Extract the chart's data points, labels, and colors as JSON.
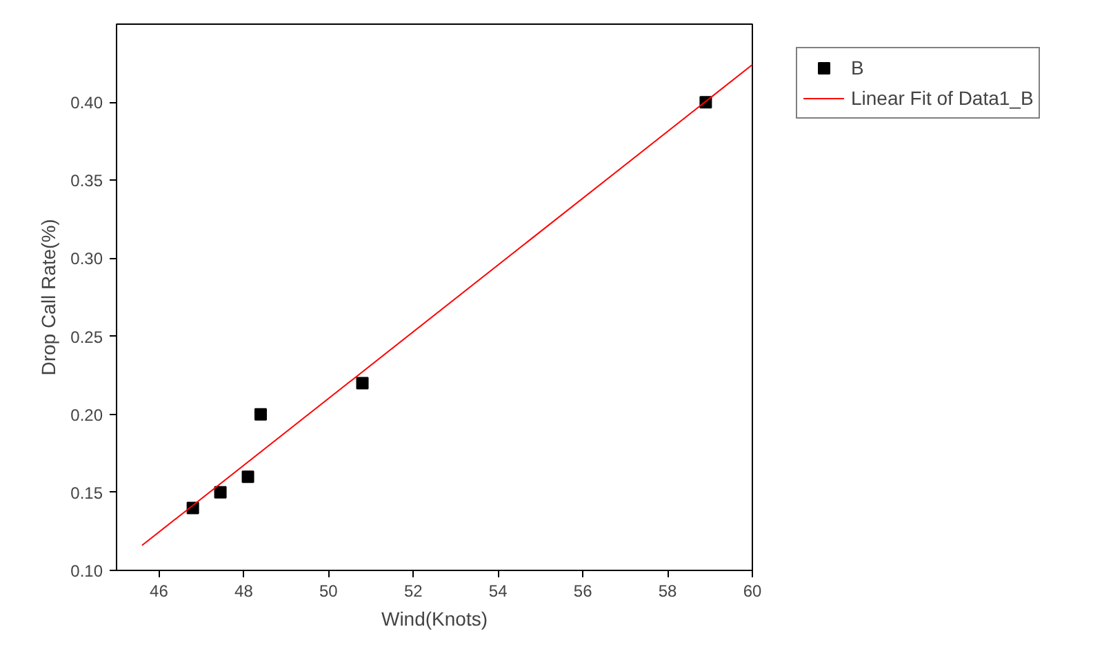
{
  "chart_data": {
    "type": "scatter",
    "xlabel": "Wind(Knots)",
    "ylabel": "Drop Call Rate(%)",
    "xlim": [
      45,
      60
    ],
    "xticks": [
      46,
      48,
      50,
      52,
      54,
      56,
      58,
      60
    ],
    "ylim": [
      0.1,
      0.45
    ],
    "yticks": [
      {
        "value": 0.1,
        "label": "0.10"
      },
      {
        "value": 0.15,
        "label": "0.15"
      },
      {
        "value": 0.2,
        "label": "0.20"
      },
      {
        "value": 0.25,
        "label": "0.25"
      },
      {
        "value": 0.3,
        "label": "0.30"
      },
      {
        "value": 0.35,
        "label": "0.35"
      },
      {
        "value": 0.4,
        "label": "0.40"
      }
    ],
    "grid": false,
    "legend": "top right",
    "series": [
      {
        "name": "B",
        "marker": "square",
        "color": "#000000",
        "x": [
          46.8,
          47.45,
          48.1,
          48.4,
          50.8,
          58.9
        ],
        "values": [
          0.14,
          0.15,
          0.16,
          0.2,
          0.22,
          0.4
        ]
      },
      {
        "name": "Linear Fit of Data1_B",
        "type": "line",
        "color": "#ff0000",
        "line_style": "solid",
        "x": [
          45.6,
          60
        ],
        "values": [
          0.116,
          0.424
        ]
      }
    ]
  }
}
